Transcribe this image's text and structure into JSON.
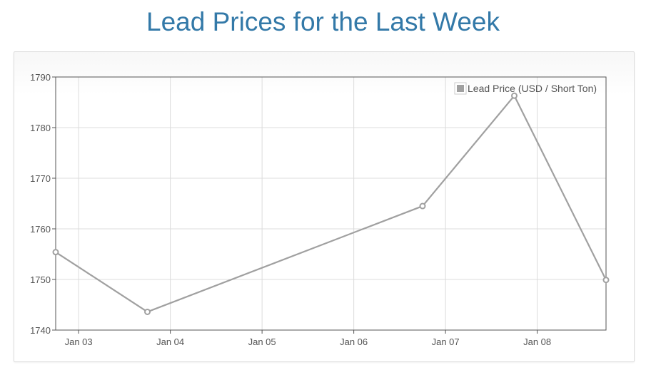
{
  "page": {
    "title": "Lead Prices for the Last Week"
  },
  "chart_data": {
    "type": "line",
    "title": "Lead Prices for the Last Week",
    "xlabel": "",
    "ylabel": "",
    "x_ticks": [
      "Jan 03",
      "Jan 04",
      "Jan 05",
      "Jan 06",
      "Jan 07",
      "Jan 08"
    ],
    "x_range": [
      "Jan 02 18:00",
      "Jan 08 18:00"
    ],
    "ylim": [
      1740,
      1790
    ],
    "y_ticks": [
      1740,
      1750,
      1760,
      1770,
      1780,
      1790
    ],
    "grid": true,
    "legend_position": "top-right",
    "series": [
      {
        "name": "Lead Price (USD / Short Ton)",
        "color": "#a0a0a0",
        "points": [
          {
            "x": "Jan 02 18:00",
            "y": 1755.4
          },
          {
            "x": "Jan 03 18:00",
            "y": 1743.6
          },
          {
            "x": "Jan 06 18:00",
            "y": 1764.5
          },
          {
            "x": "Jan 07 18:00",
            "y": 1786.3
          },
          {
            "x": "Jan 08 18:00",
            "y": 1749.9
          }
        ]
      }
    ]
  }
}
